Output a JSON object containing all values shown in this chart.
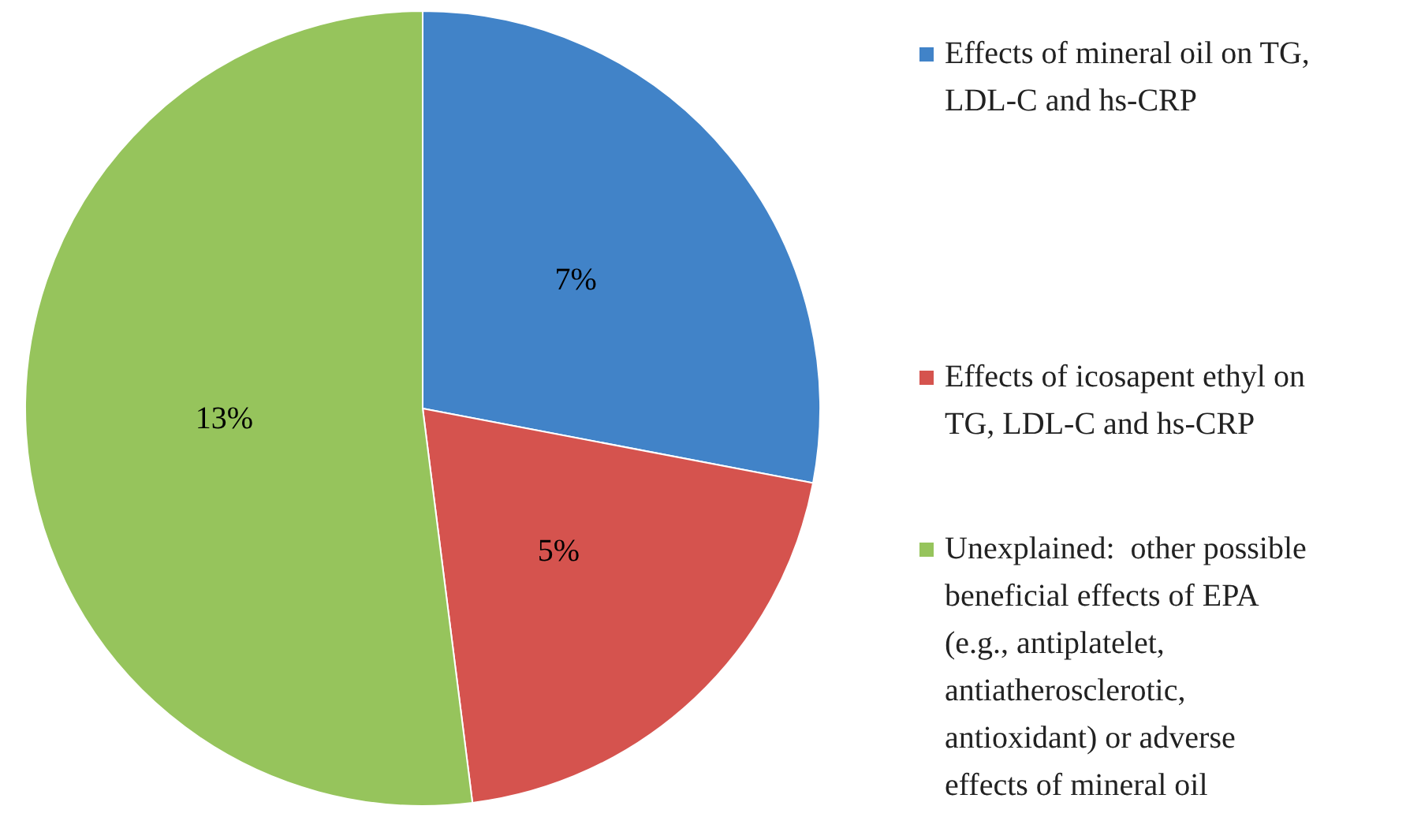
{
  "chart_data": {
    "type": "pie",
    "categories": [
      "Effects of mineral oil on TG, LDL-C and hs-CRP",
      "Effects of icosapent ethyl on TG, LDL-C and hs-CRP",
      "Unexplained:  other possible beneficial effects of EPA (e.g., antiplatelet, antiatherosclerotic, antioxidant) or adverse effects of mineral oil"
    ],
    "values": [
      7,
      5,
      13
    ],
    "colors": [
      "#4183c8",
      "#d5534e",
      "#96c45c"
    ],
    "value_labels": [
      "7%",
      "5%",
      "13%"
    ],
    "legend": "right"
  }
}
